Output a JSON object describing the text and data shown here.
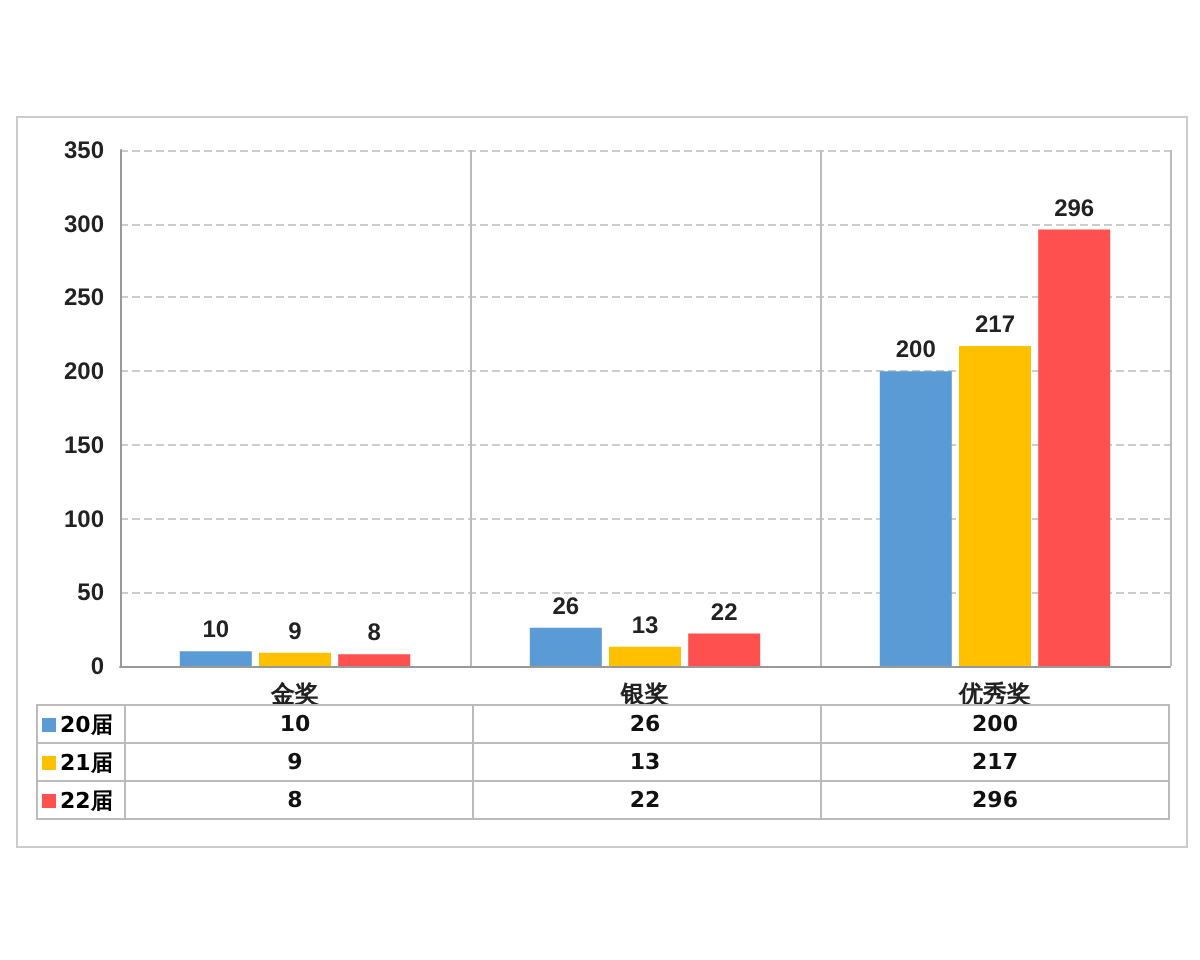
{
  "chart_data": {
    "type": "bar",
    "categories": [
      "金奖",
      "银奖",
      "优秀奖"
    ],
    "series": [
      {
        "name": "20届",
        "color": "#5b9bd5",
        "values": [
          10,
          26,
          200
        ],
        "value_labels": [
          "10",
          "26",
          "200"
        ]
      },
      {
        "name": "21届",
        "color": "#ffc000",
        "values": [
          9,
          13,
          217
        ],
        "value_labels": [
          "9",
          "13",
          "217"
        ]
      },
      {
        "name": "22届",
        "color": "#ff5050",
        "values": [
          8,
          22,
          296
        ],
        "value_labels": [
          "8",
          "22",
          "296"
        ]
      }
    ],
    "annotations": [
      "10",
      "26",
      "200",
      "9",
      "13",
      "217",
      "8",
      "22",
      "296"
    ],
    "ylim": [
      0,
      350
    ],
    "yticks": [
      0,
      50,
      100,
      150,
      200,
      250,
      300,
      350
    ],
    "grid": true,
    "legend": "bottom"
  }
}
